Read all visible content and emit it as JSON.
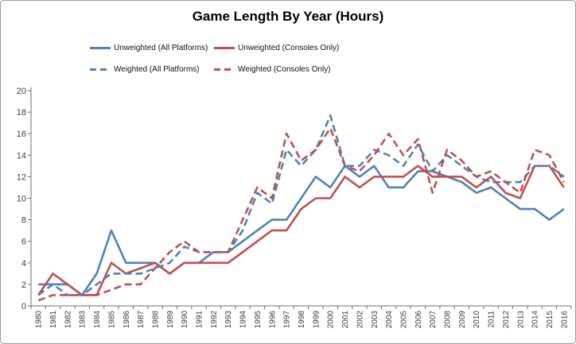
{
  "title": "Game Length By Year (Hours)",
  "legend": {
    "items": [
      {
        "label": "Unweighted (All Platforms)",
        "color": "#4F81BD",
        "dash": false
      },
      {
        "label": "Unweighted (Consoles Only)",
        "color": "#C0504D",
        "dash": false
      },
      {
        "label": "Weighted (All Platforms)",
        "color": "#4F81BD",
        "dash": true
      },
      {
        "label": "Weighted (Consoles Only)",
        "color": "#C0504D",
        "dash": true
      }
    ]
  },
  "axes": {
    "y_ticks": [
      0,
      2,
      4,
      6,
      8,
      10,
      12,
      14,
      16,
      18,
      20
    ],
    "x_ticks": [
      "1980",
      "1981",
      "1982",
      "1983",
      "1984",
      "1985",
      "1986",
      "1987",
      "1988",
      "1989",
      "1990",
      "1991",
      "1992",
      "1993",
      "1994",
      "1995",
      "1996",
      "1997",
      "1998",
      "1999",
      "2000",
      "2001",
      "2002",
      "2003",
      "2004",
      "2005",
      "2006",
      "2007",
      "2008",
      "2009",
      "2010",
      "2011",
      "2012",
      "2013",
      "2014",
      "2015",
      "2016"
    ]
  },
  "chart_data": {
    "type": "line",
    "title": "Game Length By Year (Hours)",
    "xlabel": "",
    "ylabel": "",
    "ylim": [
      0,
      20
    ],
    "grid": false,
    "legend_position": "top",
    "x": [
      1980,
      1981,
      1982,
      1983,
      1984,
      1985,
      1986,
      1987,
      1988,
      1989,
      1990,
      1991,
      1992,
      1993,
      1994,
      1995,
      1996,
      1997,
      1998,
      1999,
      2000,
      2001,
      2002,
      2003,
      2004,
      2005,
      2006,
      2007,
      2008,
      2009,
      2010,
      2011,
      2012,
      2013,
      2014,
      2015,
      2016
    ],
    "series": [
      {
        "name": "Unweighted (All Platforms)",
        "color": "#4F81BD",
        "style": "solid",
        "values": [
          2,
          2,
          2,
          1,
          3,
          7,
          4,
          4,
          4,
          3,
          4,
          4,
          5,
          5,
          6,
          7,
          8,
          8,
          10,
          12,
          11,
          13,
          12,
          13,
          11,
          11,
          12.5,
          12.5,
          12,
          11.5,
          10.5,
          11,
          10,
          9,
          9,
          8,
          9
        ]
      },
      {
        "name": "Unweighted (Consoles Only)",
        "color": "#C0504D",
        "style": "solid",
        "values": [
          1,
          3,
          2,
          1,
          1,
          4,
          3,
          3.5,
          4,
          3,
          4,
          4,
          4,
          4,
          5,
          6,
          7,
          7,
          9,
          10,
          10,
          12,
          11,
          12,
          12,
          12,
          13,
          12,
          12,
          12,
          11,
          12,
          10.5,
          10,
          13,
          13,
          11
        ]
      },
      {
        "name": "Weighted (All Platforms)",
        "color": "#4F81BD",
        "style": "dashed",
        "values": [
          1,
          2,
          1,
          1,
          2,
          3,
          3,
          3,
          3.5,
          4,
          5.5,
          5,
          5,
          5,
          7,
          10.5,
          9.5,
          14.5,
          13,
          14.5,
          17.7,
          13,
          13,
          14.5,
          14,
          13,
          15,
          12.5,
          14,
          13,
          12,
          11.5,
          11.5,
          11.5,
          13,
          13,
          12
        ]
      },
      {
        "name": "Weighted (Consoles Only)",
        "color": "#C0504D",
        "style": "dashed",
        "values": [
          0.5,
          1,
          1,
          1,
          1,
          1.5,
          2,
          2,
          3.5,
          5,
          6,
          5,
          5,
          5,
          8,
          11,
          10,
          16,
          13.5,
          14.5,
          16.5,
          13,
          12.5,
          14,
          16,
          14,
          15.5,
          10.5,
          14.5,
          13.5,
          12,
          12.5,
          11.5,
          10.5,
          14.5,
          14,
          11.5
        ]
      }
    ]
  }
}
